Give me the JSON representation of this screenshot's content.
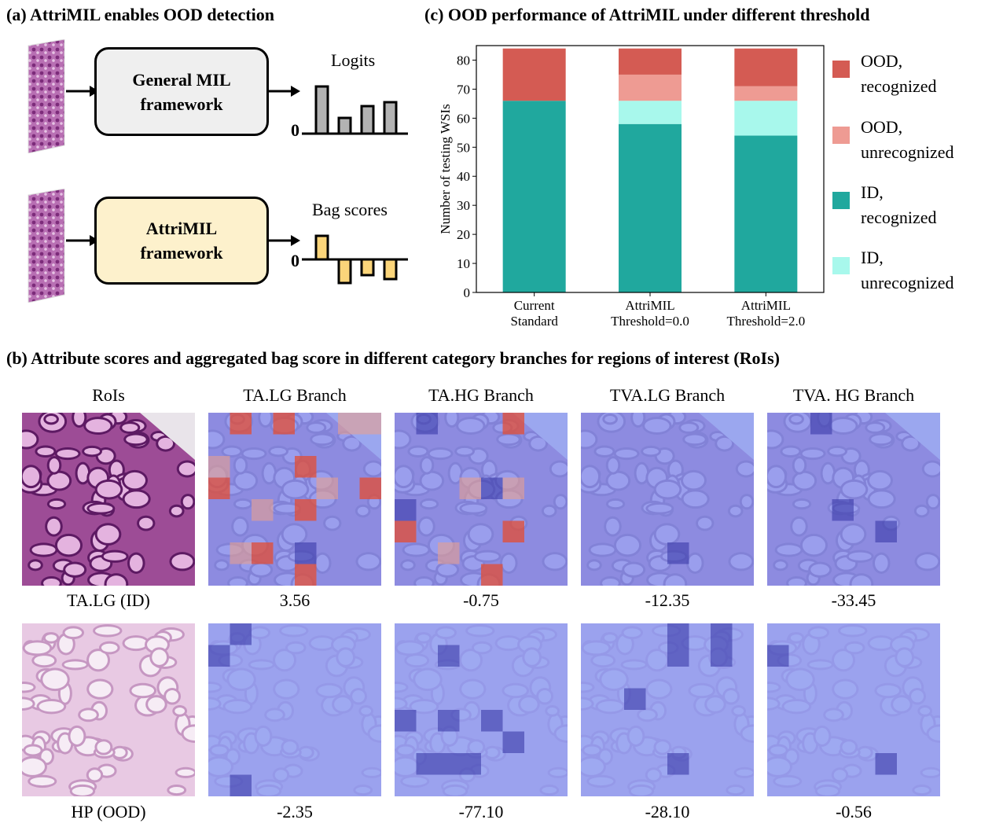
{
  "panel_a": {
    "title": "(a) AttriMIL enables OOD detection",
    "box1": {
      "line1": "General MIL",
      "line2": "framework"
    },
    "box2": {
      "line1": "AttriMIL",
      "line2": "framework"
    },
    "logits_label": "Logits",
    "bag_scores_label": "Bag scores",
    "zero_label": "0",
    "logits_values": [
      0.6,
      0.2,
      0.35,
      0.4
    ],
    "bag_score_values": [
      0.3,
      -0.3,
      -0.2,
      -0.25
    ],
    "colors": {
      "box1": "#efefef",
      "box2": "#fdf1cc",
      "logit_bar": "#b3b3b3",
      "bag_bar": "#fbd57a"
    }
  },
  "panel_c": {
    "title": "(c) OOD performance of AttriMIL under different threshold",
    "legend": [
      {
        "line1": "OOD,",
        "line2": "recognized",
        "color": "#d45b53"
      },
      {
        "line1": "OOD,",
        "line2": "unrecognized",
        "color": "#ee9b93"
      },
      {
        "line1": "ID,",
        "line2": "recognized",
        "color": "#20a89e"
      },
      {
        "line1": "ID,",
        "line2": "unrecognized",
        "color": "#a8f8ec"
      }
    ]
  },
  "chart_data": {
    "type": "bar",
    "stacked": true,
    "ylabel": "Number of testing WSIs",
    "ylim": [
      0,
      85
    ],
    "yticks": [
      0,
      10,
      20,
      30,
      40,
      50,
      60,
      70,
      80
    ],
    "categories": [
      [
        "Current",
        "Standard"
      ],
      [
        "AttriMIL",
        "Threshold=0.0"
      ],
      [
        "AttriMIL",
        "Threshold=2.0"
      ]
    ],
    "series": [
      {
        "name": "ID, recognized",
        "color": "#20a89e",
        "values": [
          66,
          58,
          54
        ]
      },
      {
        "name": "ID, unrecognized",
        "color": "#a8f8ec",
        "values": [
          0,
          8,
          12
        ]
      },
      {
        "name": "OOD, unrecognized",
        "color": "#ee9b93",
        "values": [
          0,
          9,
          5
        ]
      },
      {
        "name": "OOD, recognized",
        "color": "#d45b53",
        "values": [
          18,
          9,
          13
        ]
      }
    ]
  },
  "panel_b": {
    "title": "(b) Attribute scores and aggregated bag score in different category branches for regions of interest (RoIs)",
    "column_headers": [
      "RoIs",
      "TA.LG Branch",
      "TA.HG Branch",
      "TVA.LG Branch",
      "TVA. HG Branch"
    ],
    "rows": [
      {
        "label": "TA.LG (ID)",
        "scores": [
          "3.56",
          "-0.75",
          "-12.35",
          "-33.45"
        ]
      },
      {
        "label": "HP (OOD)",
        "scores": [
          "-2.35",
          "-77.10",
          "-28.10",
          "-0.56"
        ]
      }
    ],
    "colors": {
      "overlay": "#8a9af0",
      "high": "#e0503a",
      "low": "#3a3aa8"
    }
  }
}
